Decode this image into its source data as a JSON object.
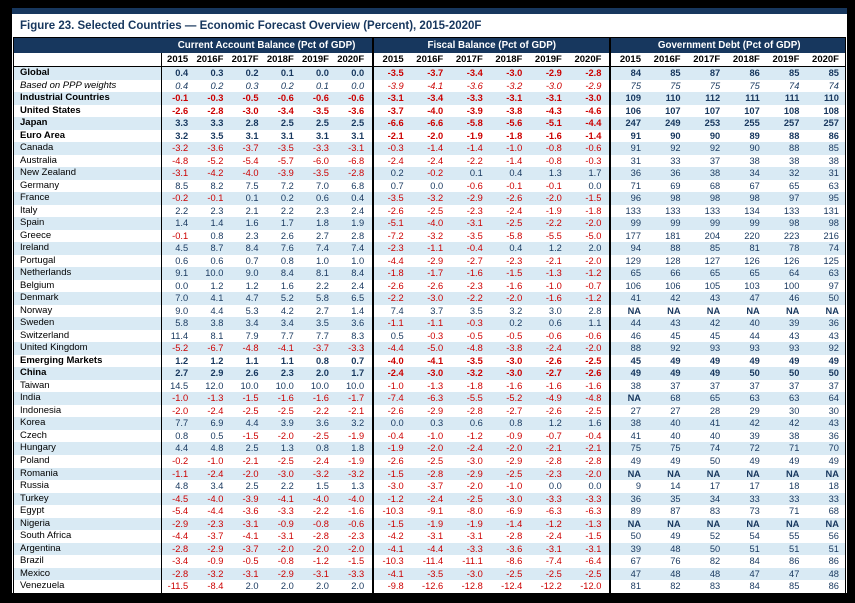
{
  "title": "Figure 23. Selected Countries — Economic Forecast Overview (Percent), 2015-2020F",
  "colors": {
    "header_navy": "#17375E",
    "row_shade": "#D9EAF4",
    "value_navy": "#17375E",
    "negative_red": "#CC0000",
    "frame_black": "#000000"
  },
  "table": {
    "groups": [
      "Current Account Balance (Pct of GDP)",
      "Fiscal Balance (Pct of GDP)",
      "Government Debt (Pct of GDP)"
    ],
    "years": [
      "2015",
      "2016F",
      "2017F",
      "2018F",
      "2019F",
      "2020F"
    ],
    "rows": [
      {
        "label": "Global",
        "style": "bold",
        "cab": [
          "0.4",
          "0.3",
          "0.2",
          "0.1",
          "0.0",
          "0.0"
        ],
        "fiscal": [
          "-3.5",
          "-3.7",
          "-3.4",
          "-3.0",
          "-2.9",
          "-2.8"
        ],
        "debt": [
          "84",
          "85",
          "87",
          "86",
          "85",
          "85"
        ]
      },
      {
        "label": "Based on PPP weights",
        "style": "italic",
        "cab": [
          "0.4",
          "0.2",
          "0.3",
          "0.2",
          "0.1",
          "0.0"
        ],
        "fiscal": [
          "-3.9",
          "-4.1",
          "-3.6",
          "-3.2",
          "-3.0",
          "-2.9"
        ],
        "debt": [
          "75",
          "75",
          "75",
          "75",
          "74",
          "74"
        ]
      },
      {
        "label": "Industrial Countries",
        "style": "bold",
        "cab": [
          "-0.1",
          "-0.3",
          "-0.5",
          "-0.6",
          "-0.6",
          "-0.6"
        ],
        "fiscal": [
          "-3.1",
          "-3.4",
          "-3.3",
          "-3.1",
          "-3.1",
          "-3.0"
        ],
        "debt": [
          "109",
          "110",
          "112",
          "111",
          "111",
          "110"
        ]
      },
      {
        "label": "United States",
        "style": "bold",
        "cab": [
          "-2.6",
          "-2.8",
          "-3.0",
          "-3.4",
          "-3.5",
          "-3.6"
        ],
        "fiscal": [
          "-3.7",
          "-4.0",
          "-3.9",
          "-3.8",
          "-4.3",
          "-4.6"
        ],
        "debt": [
          "106",
          "107",
          "107",
          "107",
          "108",
          "108"
        ]
      },
      {
        "label": "Japan",
        "style": "bold",
        "cab": [
          "3.3",
          "3.3",
          "2.8",
          "2.5",
          "2.5",
          "2.5"
        ],
        "fiscal": [
          "-6.6",
          "-6.6",
          "-5.8",
          "-5.6",
          "-5.1",
          "-4.4"
        ],
        "debt": [
          "247",
          "249",
          "253",
          "255",
          "257",
          "257"
        ]
      },
      {
        "label": "Euro Area",
        "style": "bold",
        "cab": [
          "3.2",
          "3.5",
          "3.1",
          "3.1",
          "3.1",
          "3.1"
        ],
        "fiscal": [
          "-2.1",
          "-2.0",
          "-1.9",
          "-1.8",
          "-1.6",
          "-1.4"
        ],
        "debt": [
          "91",
          "90",
          "90",
          "89",
          "88",
          "86"
        ]
      },
      {
        "label": "Canada",
        "style": "",
        "cab": [
          "-3.2",
          "-3.6",
          "-3.7",
          "-3.5",
          "-3.3",
          "-3.1"
        ],
        "fiscal": [
          "-0.3",
          "-1.4",
          "-1.4",
          "-1.0",
          "-0.8",
          "-0.6"
        ],
        "debt": [
          "91",
          "92",
          "92",
          "90",
          "88",
          "85"
        ]
      },
      {
        "label": "Australia",
        "style": "",
        "cab": [
          "-4.8",
          "-5.2",
          "-5.4",
          "-5.7",
          "-6.0",
          "-6.8"
        ],
        "fiscal": [
          "-2.4",
          "-2.4",
          "-2.2",
          "-1.4",
          "-0.8",
          "-0.3"
        ],
        "debt": [
          "31",
          "33",
          "37",
          "38",
          "38",
          "38"
        ]
      },
      {
        "label": "New Zealand",
        "style": "",
        "cab": [
          "-3.1",
          "-4.2",
          "-4.0",
          "-3.9",
          "-3.5",
          "-2.8"
        ],
        "fiscal": [
          "0.2",
          "-0.2",
          "0.1",
          "0.4",
          "1.3",
          "1.7"
        ],
        "debt": [
          "36",
          "36",
          "38",
          "34",
          "32",
          "31"
        ]
      },
      {
        "label": "Germany",
        "style": "",
        "cab": [
          "8.5",
          "8.2",
          "7.5",
          "7.2",
          "7.0",
          "6.8"
        ],
        "fiscal": [
          "0.7",
          "0.0",
          "-0.6",
          "-0.1",
          "-0.1",
          "0.0"
        ],
        "debt": [
          "71",
          "69",
          "68",
          "67",
          "65",
          "63"
        ]
      },
      {
        "label": "France",
        "style": "",
        "cab": [
          "-0.2",
          "-0.1",
          "0.1",
          "0.2",
          "0.6",
          "0.4"
        ],
        "fiscal": [
          "-3.5",
          "-3.2",
          "-2.9",
          "-2.6",
          "-2.0",
          "-1.5"
        ],
        "debt": [
          "96",
          "98",
          "98",
          "98",
          "97",
          "95"
        ]
      },
      {
        "label": "Italy",
        "style": "",
        "cab": [
          "2.2",
          "2.3",
          "2.1",
          "2.2",
          "2.3",
          "2.4"
        ],
        "fiscal": [
          "-2.6",
          "-2.5",
          "-2.3",
          "-2.4",
          "-1.9",
          "-1.8"
        ],
        "debt": [
          "133",
          "133",
          "133",
          "134",
          "133",
          "131"
        ]
      },
      {
        "label": "Spain",
        "style": "",
        "cab": [
          "1.4",
          "1.4",
          "1.6",
          "1.7",
          "1.8",
          "1.9"
        ],
        "fiscal": [
          "-5.1",
          "-4.0",
          "-3.1",
          "-2.5",
          "-2.2",
          "-2.0"
        ],
        "debt": [
          "99",
          "99",
          "99",
          "99",
          "98",
          "98"
        ]
      },
      {
        "label": "Greece",
        "style": "",
        "cab": [
          "-0.1",
          "0.8",
          "2.3",
          "2.6",
          "2.7",
          "2.8"
        ],
        "fiscal": [
          "-7.2",
          "-3.2",
          "-3.5",
          "-5.8",
          "-5.5",
          "-5.0"
        ],
        "debt": [
          "177",
          "181",
          "204",
          "220",
          "223",
          "216"
        ]
      },
      {
        "label": "Ireland",
        "style": "",
        "cab": [
          "4.5",
          "8.7",
          "8.4",
          "7.6",
          "7.4",
          "7.4"
        ],
        "fiscal": [
          "-2.3",
          "-1.1",
          "-0.4",
          "0.4",
          "1.2",
          "2.0"
        ],
        "debt": [
          "94",
          "88",
          "85",
          "81",
          "78",
          "74"
        ]
      },
      {
        "label": "Portugal",
        "style": "",
        "cab": [
          "0.6",
          "0.6",
          "0.7",
          "0.8",
          "1.0",
          "1.0"
        ],
        "fiscal": [
          "-4.4",
          "-2.9",
          "-2.7",
          "-2.3",
          "-2.1",
          "-2.0"
        ],
        "debt": [
          "129",
          "128",
          "127",
          "126",
          "126",
          "125"
        ]
      },
      {
        "label": "Netherlands",
        "style": "",
        "cab": [
          "9.1",
          "10.0",
          "9.0",
          "8.4",
          "8.1",
          "8.4"
        ],
        "fiscal": [
          "-1.8",
          "-1.7",
          "-1.6",
          "-1.5",
          "-1.3",
          "-1.2"
        ],
        "debt": [
          "65",
          "66",
          "65",
          "65",
          "64",
          "63"
        ]
      },
      {
        "label": "Belgium",
        "style": "",
        "cab": [
          "0.0",
          "1.2",
          "1.2",
          "1.6",
          "2.2",
          "2.4"
        ],
        "fiscal": [
          "-2.6",
          "-2.6",
          "-2.3",
          "-1.6",
          "-1.0",
          "-0.7"
        ],
        "debt": [
          "106",
          "106",
          "105",
          "103",
          "100",
          "97"
        ]
      },
      {
        "label": "Denmark",
        "style": "",
        "cab": [
          "7.0",
          "4.1",
          "4.7",
          "5.2",
          "5.8",
          "6.5"
        ],
        "fiscal": [
          "-2.2",
          "-3.0",
          "-2.2",
          "-2.0",
          "-1.6",
          "-1.2"
        ],
        "debt": [
          "41",
          "42",
          "43",
          "47",
          "46",
          "50"
        ]
      },
      {
        "label": "Norway",
        "style": "",
        "cab": [
          "9.0",
          "4.4",
          "5.3",
          "4.2",
          "2.7",
          "1.4"
        ],
        "fiscal": [
          "7.4",
          "3.7",
          "3.5",
          "3.2",
          "3.0",
          "2.8"
        ],
        "debt": [
          "NA",
          "NA",
          "NA",
          "NA",
          "NA",
          "NA"
        ]
      },
      {
        "label": "Sweden",
        "style": "",
        "cab": [
          "5.8",
          "3.8",
          "3.4",
          "3.4",
          "3.5",
          "3.6"
        ],
        "fiscal": [
          "-1.1",
          "-1.1",
          "-0.3",
          "0.2",
          "0.6",
          "1.1"
        ],
        "debt": [
          "44",
          "43",
          "42",
          "40",
          "39",
          "36"
        ]
      },
      {
        "label": "Switzerland",
        "style": "",
        "cab": [
          "11.4",
          "8.1",
          "7.9",
          "7.7",
          "7.7",
          "8.3"
        ],
        "fiscal": [
          "0.5",
          "-0.3",
          "-0.5",
          "-0.5",
          "-0.6",
          "-0.6"
        ],
        "debt": [
          "46",
          "45",
          "45",
          "44",
          "43",
          "43"
        ]
      },
      {
        "label": "United Kingdom",
        "style": "",
        "cab": [
          "-5.2",
          "-6.7",
          "-4.8",
          "-4.1",
          "-3.7",
          "-3.3"
        ],
        "fiscal": [
          "-4.4",
          "-5.0",
          "-4.8",
          "-3.8",
          "-2.4",
          "-2.0"
        ],
        "debt": [
          "88",
          "92",
          "93",
          "93",
          "93",
          "92"
        ]
      },
      {
        "label": "Emerging Markets",
        "style": "bold",
        "cab": [
          "1.2",
          "1.2",
          "1.1",
          "1.1",
          "0.8",
          "0.7"
        ],
        "fiscal": [
          "-4.0",
          "-4.1",
          "-3.5",
          "-3.0",
          "-2.6",
          "-2.5"
        ],
        "debt": [
          "45",
          "49",
          "49",
          "49",
          "49",
          "49"
        ]
      },
      {
        "label": "China",
        "style": "bold",
        "cab": [
          "2.7",
          "2.9",
          "2.6",
          "2.3",
          "2.0",
          "1.7"
        ],
        "fiscal": [
          "-2.4",
          "-3.0",
          "-3.2",
          "-3.0",
          "-2.7",
          "-2.6"
        ],
        "debt": [
          "49",
          "49",
          "49",
          "50",
          "50",
          "50"
        ]
      },
      {
        "label": "Taiwan",
        "style": "",
        "cab": [
          "14.5",
          "12.0",
          "10.0",
          "10.0",
          "10.0",
          "10.0"
        ],
        "fiscal": [
          "-1.0",
          "-1.3",
          "-1.8",
          "-1.6",
          "-1.6",
          "-1.6"
        ],
        "debt": [
          "38",
          "37",
          "37",
          "37",
          "37",
          "37"
        ]
      },
      {
        "label": "India",
        "style": "",
        "cab": [
          "-1.0",
          "-1.3",
          "-1.5",
          "-1.6",
          "-1.6",
          "-1.7"
        ],
        "fiscal": [
          "-7.4",
          "-6.3",
          "-5.5",
          "-5.2",
          "-4.9",
          "-4.8"
        ],
        "debt": [
          "NA",
          "68",
          "65",
          "63",
          "63",
          "64"
        ]
      },
      {
        "label": "Indonesia",
        "style": "",
        "cab": [
          "-2.0",
          "-2.4",
          "-2.5",
          "-2.5",
          "-2.2",
          "-2.1"
        ],
        "fiscal": [
          "-2.6",
          "-2.9",
          "-2.8",
          "-2.7",
          "-2.6",
          "-2.5"
        ],
        "debt": [
          "27",
          "27",
          "28",
          "29",
          "30",
          "30"
        ]
      },
      {
        "label": "Korea",
        "style": "",
        "cab": [
          "7.7",
          "6.9",
          "4.4",
          "3.9",
          "3.6",
          "3.2"
        ],
        "fiscal": [
          "0.0",
          "0.3",
          "0.6",
          "0.8",
          "1.2",
          "1.6"
        ],
        "debt": [
          "38",
          "40",
          "41",
          "42",
          "42",
          "43"
        ]
      },
      {
        "label": "Czech",
        "style": "",
        "cab": [
          "0.8",
          "0.5",
          "-1.5",
          "-2.0",
          "-2.5",
          "-1.9"
        ],
        "fiscal": [
          "-0.4",
          "-1.0",
          "-1.2",
          "-0.9",
          "-0.7",
          "-0.4"
        ],
        "debt": [
          "41",
          "40",
          "40",
          "39",
          "38",
          "36"
        ]
      },
      {
        "label": "Hungary",
        "style": "",
        "cab": [
          "4.4",
          "4.8",
          "2.5",
          "1.3",
          "0.8",
          "1.8"
        ],
        "fiscal": [
          "-1.9",
          "-2.0",
          "-2.4",
          "-2.0",
          "-2.1",
          "-2.1"
        ],
        "debt": [
          "75",
          "75",
          "74",
          "72",
          "71",
          "70"
        ]
      },
      {
        "label": "Poland",
        "style": "",
        "cab": [
          "-0.2",
          "-1.0",
          "-2.1",
          "-2.5",
          "-2.4",
          "-1.9"
        ],
        "fiscal": [
          "-2.6",
          "-2.5",
          "-3.0",
          "-2.9",
          "-2.8",
          "-2.8"
        ],
        "debt": [
          "49",
          "49",
          "50",
          "49",
          "49",
          "49"
        ]
      },
      {
        "label": "Romania",
        "style": "",
        "cab": [
          "-1.1",
          "-2.4",
          "-2.0",
          "-3.0",
          "-3.2",
          "-3.2"
        ],
        "fiscal": [
          "-1.5",
          "-2.8",
          "-2.9",
          "-2.5",
          "-2.3",
          "-2.0"
        ],
        "debt": [
          "NA",
          "NA",
          "NA",
          "NA",
          "NA",
          "NA"
        ]
      },
      {
        "label": "Russia",
        "style": "",
        "cab": [
          "4.8",
          "3.4",
          "2.5",
          "2.2",
          "1.5",
          "1.3"
        ],
        "fiscal": [
          "-3.0",
          "-3.7",
          "-2.0",
          "-1.0",
          "0.0",
          "0.0"
        ],
        "debt": [
          "9",
          "14",
          "17",
          "17",
          "18",
          "18"
        ]
      },
      {
        "label": "Turkey",
        "style": "",
        "cab": [
          "-4.5",
          "-4.0",
          "-3.9",
          "-4.1",
          "-4.0",
          "-4.0"
        ],
        "fiscal": [
          "-1.2",
          "-2.4",
          "-2.5",
          "-3.0",
          "-3.3",
          "-3.3"
        ],
        "debt": [
          "36",
          "35",
          "34",
          "33",
          "33",
          "33"
        ]
      },
      {
        "label": "Egypt",
        "style": "",
        "cab": [
          "-5.4",
          "-4.4",
          "-3.6",
          "-3.3",
          "-2.2",
          "-1.6"
        ],
        "fiscal": [
          "-10.3",
          "-9.1",
          "-8.0",
          "-6.9",
          "-6.3",
          "-6.3"
        ],
        "debt": [
          "89",
          "87",
          "83",
          "73",
          "71",
          "68"
        ]
      },
      {
        "label": "Nigeria",
        "style": "",
        "cab": [
          "-2.9",
          "-2.3",
          "-3.1",
          "-0.9",
          "-0.8",
          "-0.6"
        ],
        "fiscal": [
          "-1.5",
          "-1.9",
          "-1.9",
          "-1.4",
          "-1.2",
          "-1.3"
        ],
        "debt": [
          "NA",
          "NA",
          "NA",
          "NA",
          "NA",
          "NA"
        ]
      },
      {
        "label": "South Africa",
        "style": "",
        "cab": [
          "-4.4",
          "-3.7",
          "-4.1",
          "-3.1",
          "-2.8",
          "-2.3"
        ],
        "fiscal": [
          "-4.2",
          "-3.1",
          "-3.1",
          "-2.8",
          "-2.4",
          "-1.5"
        ],
        "debt": [
          "50",
          "49",
          "52",
          "54",
          "55",
          "56"
        ]
      },
      {
        "label": "Argentina",
        "style": "",
        "cab": [
          "-2.8",
          "-2.9",
          "-3.7",
          "-2.0",
          "-2.0",
          "-2.0"
        ],
        "fiscal": [
          "-4.1",
          "-4.4",
          "-3.3",
          "-3.6",
          "-3.1",
          "-3.1"
        ],
        "debt": [
          "39",
          "48",
          "50",
          "51",
          "51",
          "51"
        ]
      },
      {
        "label": "Brazil",
        "style": "",
        "cab": [
          "-3.4",
          "-0.9",
          "-0.5",
          "-0.8",
          "-1.2",
          "-1.5"
        ],
        "fiscal": [
          "-10.3",
          "-11.4",
          "-11.1",
          "-8.6",
          "-7.4",
          "-6.4"
        ],
        "debt": [
          "67",
          "76",
          "82",
          "84",
          "86",
          "86"
        ]
      },
      {
        "label": "Mexico",
        "style": "",
        "cab": [
          "-2.8",
          "-3.2",
          "-3.1",
          "-2.9",
          "-3.1",
          "-3.3"
        ],
        "fiscal": [
          "-4.1",
          "-3.5",
          "-3.0",
          "-2.5",
          "-2.5",
          "-2.5"
        ],
        "debt": [
          "47",
          "48",
          "48",
          "47",
          "47",
          "48"
        ]
      },
      {
        "label": "Venezuela",
        "style": "",
        "cab": [
          "-11.5",
          "-8.4",
          "2.0",
          "2.0",
          "2.0",
          "2.0"
        ],
        "fiscal": [
          "-9.8",
          "-12.6",
          "-12.8",
          "-12.4",
          "-12.2",
          "-12.0"
        ],
        "debt": [
          "81",
          "82",
          "83",
          "84",
          "85",
          "86"
        ]
      }
    ]
  }
}
